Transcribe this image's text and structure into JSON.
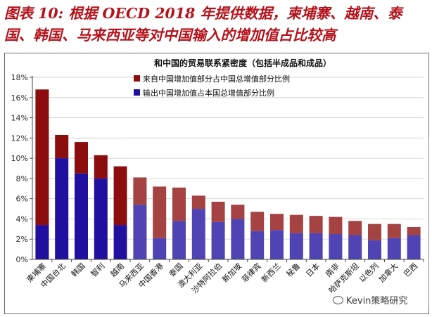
{
  "figure_title": "图表 10: 根据 OECD 2018 年提供数据，柬埔寨、越南、泰国、韩国、马来西亚等对中国输入的增加值占比较高",
  "watermark": "Kevin策略研究",
  "colors": {
    "title": "#b5121b",
    "imports": "#8c0d0d",
    "exports": "#1f10a0",
    "tick": "#2b2b2b"
  },
  "chart_data": {
    "type": "bar",
    "stacked": true,
    "title": "和中国的贸易联系紧密度（包括半成品和成品）",
    "xlabel": "",
    "ylabel": "",
    "ylim": [
      0,
      18
    ],
    "yticks": [
      0,
      2,
      4,
      6,
      8,
      10,
      12,
      14,
      16,
      18
    ],
    "ytick_labels": [
      "0%",
      "2%",
      "4%",
      "6%",
      "8%",
      "10%",
      "12%",
      "14%",
      "16%",
      "18%"
    ],
    "legend_position": "top-right",
    "categories": [
      "柬埔寨",
      "中国台北",
      "韩国",
      "智利",
      "越南",
      "马来西亚",
      "中国香港",
      "泰国",
      "澳大利亚",
      "沙特阿拉伯",
      "新加坡",
      "菲律宾",
      "新西兰",
      "秘鲁",
      "日本",
      "南非",
      "哈萨克斯坦",
      "以色列",
      "加拿大",
      "巴西"
    ],
    "series": [
      {
        "name": "输出中国增加值占本国总增值部分比例",
        "values": [
          3.4,
          10.0,
          8.5,
          8.0,
          3.4,
          5.4,
          2.1,
          3.8,
          5.0,
          3.7,
          4.0,
          2.8,
          2.9,
          2.6,
          2.6,
          2.5,
          2.4,
          1.9,
          2.1,
          2.4
        ]
      },
      {
        "name": "来自中国增加值部分占中国总增值部分比例",
        "values": [
          13.4,
          2.3,
          3.1,
          2.3,
          5.8,
          2.7,
          5.1,
          3.3,
          1.3,
          2.0,
          1.4,
          1.9,
          1.6,
          1.8,
          1.7,
          1.7,
          1.4,
          1.6,
          1.4,
          0.8
        ]
      }
    ]
  }
}
